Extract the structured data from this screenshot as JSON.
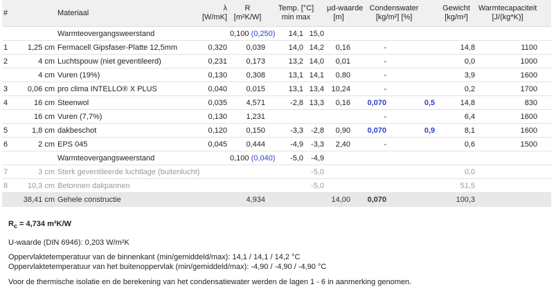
{
  "header": {
    "number": "#",
    "material": "Materiaal",
    "lambda": [
      "λ",
      "[W/mK]"
    ],
    "r": [
      "R",
      "[m²K/W]"
    ],
    "temp": [
      "Temp. [°C]",
      "min max"
    ],
    "mu": [
      "μd-waarde",
      "[m]"
    ],
    "condens": [
      "Condenswater",
      "[kg/m²] [%]"
    ],
    "weight": [
      "Gewicht",
      "[kg/m²]"
    ],
    "capacity": [
      "Warmtecapaciteit",
      "[J/(kg*K)]"
    ]
  },
  "rows": [
    [
      null,
      null,
      "Warmteovergangsweerstand",
      null,
      [
        "0,100",
        "(0,250)"
      ],
      "14,1",
      "15,0",
      null,
      null,
      null,
      null,
      null
    ],
    [
      "1",
      "1,25 cm",
      "Fermacell Gipsfaser-Platte 12,5mm",
      "0,320",
      "0,039",
      "14,0",
      "14,2",
      "0,16",
      "-",
      null,
      "14,8",
      "1100"
    ],
    [
      "2",
      "4 cm",
      "Luchtspouw (niet geventileerd)",
      "0,231",
      "0,173",
      "13,2",
      "14,0",
      "0,01",
      "-",
      null,
      "0,0",
      "1000"
    ],
    [
      null,
      "4 cm",
      "Vuren (19%)",
      "0,130",
      "0,308",
      "13,1",
      "14,1",
      "0,80",
      "-",
      null,
      "3,9",
      "1600"
    ],
    [
      "3",
      "0,06 cm",
      "pro clima INTELLO® X PLUS",
      "0,040",
      "0,015",
      "13,1",
      "13,4",
      "10,24",
      "-",
      null,
      "0,2",
      "1700"
    ],
    [
      "4",
      "16 cm",
      "Steenwol",
      "0,035",
      "4,571",
      "-2,8",
      "13,3",
      "0,16",
      "0,070",
      "0,5",
      "14,8",
      "830"
    ],
    [
      null,
      "16 cm",
      "Vuren (7,7%)",
      "0,130",
      "1,231",
      null,
      null,
      null,
      "-",
      null,
      "6,4",
      "1600"
    ],
    [
      "5",
      "1,8 cm",
      "dakbeschot",
      "0,120",
      "0,150",
      "-3,3",
      "-2,8",
      "0,90",
      "0,070",
      "0,9",
      "8,1",
      "1600"
    ],
    [
      "6",
      "2 cm",
      "EPS 045",
      "0,045",
      "0,444",
      "-4,9",
      "-3,3",
      "2,40",
      "-",
      null,
      "0,6",
      "1500"
    ],
    [
      null,
      null,
      "Warmteovergangsweerstand",
      null,
      [
        "0,100",
        "(0,040)"
      ],
      "-5,0",
      "-4,9",
      null,
      null,
      null,
      null,
      null
    ]
  ],
  "ventilated_layers": [
    [
      "7",
      "3 cm",
      "Sterk geventileerde luchtlage (buitenlucht)",
      null,
      null,
      null,
      "-5,0",
      null,
      null,
      null,
      "0,0",
      null
    ],
    [
      "8",
      "10,3 cm",
      "Betonnen dakpannen",
      null,
      null,
      null,
      "-5,0",
      null,
      null,
      null,
      "51,5",
      null
    ]
  ],
  "total": [
    null,
    "38,41 cm",
    "Gehele constructie",
    null,
    "4,934",
    null,
    null,
    "14,00",
    "0,070",
    null,
    "100,3",
    null
  ],
  "notes": {
    "rc_symbol": "R",
    "rc_sub": "c",
    "rc_value": "= 4,734 m²K/W",
    "u_value": "U-waarde (DIN 6946): 0,203 W/m²K",
    "surface_inside": "Oppervlaktetemperatuur van de binnenkant (min/gemiddeld/max): 14,1 / 14,1 / 14,2 °C",
    "surface_outside": "Oppervlaktetemperatuur van het buitenoppervlak (min/gemiddeld/max): -4,90 / -4,90 / -4,90 °C",
    "footer": "Voor de thermische isolatie en de berekening van het condensatiewater werden de lagen 1 - 6 in aanmerking genomen."
  }
}
